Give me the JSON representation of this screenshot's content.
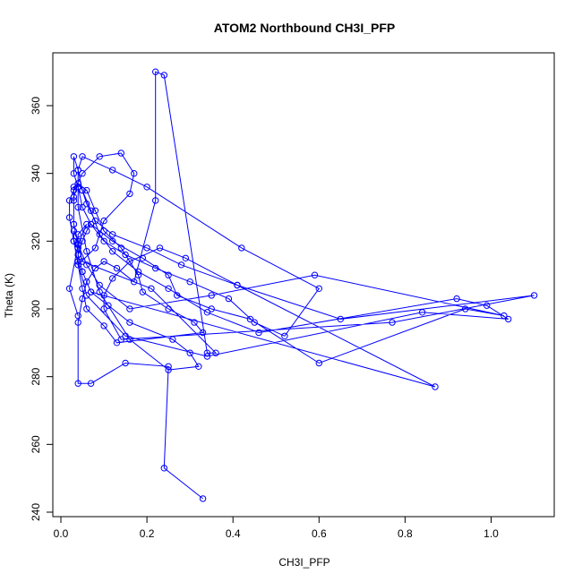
{
  "chart_data": {
    "type": "line",
    "title": "ATOM2 Northbound CH3I_PFP",
    "xlabel": "CH3I_PFP",
    "ylabel": "Theta (K)",
    "xlim": [
      0.0,
      1.1
    ],
    "ylim": [
      240,
      372
    ],
    "x_ticks": [
      0.0,
      0.2,
      0.4,
      0.6,
      0.8,
      1.0
    ],
    "x_tick_labels": [
      "0.0",
      "0.2",
      "0.4",
      "0.6",
      "0.8",
      "1.0"
    ],
    "y_ticks": [
      240,
      260,
      280,
      300,
      320,
      340,
      360
    ],
    "y_tick_labels": [
      "240",
      "260",
      "280",
      "300",
      "320",
      "340",
      "360"
    ],
    "grid": false,
    "colors": {
      "series": "#0000ff",
      "axes": "#000000",
      "background": "#ffffff"
    },
    "series": [
      {
        "marker": "open-circle",
        "x": [
          0.33,
          0.24,
          0.25,
          0.15,
          0.07,
          0.04,
          0.04,
          0.05,
          0.06,
          0.08,
          0.1,
          0.13,
          0.17,
          0.22,
          0.22,
          0.24,
          0.34,
          0.36,
          0.21,
          0.05,
          0.03,
          0.03,
          0.04,
          0.06,
          0.08,
          0.1,
          0.14,
          0.18,
          0.19,
          0.25,
          0.31,
          0.33,
          0.13,
          0.1,
          0.06,
          0.05,
          0.04,
          0.03,
          0.02,
          0.02,
          0.03,
          0.05,
          0.09,
          0.14,
          0.17,
          0.16,
          0.1,
          0.08,
          0.04,
          0.04,
          0.05,
          0.06,
          0.07,
          0.1,
          0.15,
          0.22,
          0.3,
          0.39,
          0.45,
          0.52,
          0.6,
          0.42,
          0.2,
          0.12,
          0.05,
          0.04,
          0.04,
          0.05,
          0.07,
          0.12,
          0.19,
          0.25,
          0.27,
          0.35,
          0.44,
          0.6,
          0.94,
          1.03,
          0.59,
          0.35,
          0.16,
          0.09,
          0.06,
          0.04,
          0.03,
          0.03,
          0.03,
          0.04,
          0.05,
          0.06,
          0.08,
          0.12,
          0.2,
          0.28,
          0.41,
          0.65,
          1.1,
          0.77,
          0.14,
          0.1,
          0.1,
          0.12,
          0.16,
          0.23,
          0.29,
          0.41,
          0.87,
          0.07,
          0.05,
          0.04,
          0.04,
          0.03,
          0.03,
          0.04,
          0.04,
          0.05,
          0.07,
          0.11,
          0.16,
          0.26,
          0.3,
          0.32,
          0.25,
          0.16,
          0.09,
          0.06,
          0.04,
          0.04,
          0.03,
          0.03,
          0.04,
          0.05,
          0.07,
          0.09,
          0.12,
          0.18,
          0.25,
          0.34,
          0.46,
          0.92,
          0.99,
          1.04,
          0.84,
          0.34,
          0.15,
          0.06,
          0.04,
          0.04,
          0.06,
          0.04,
          0.02,
          0.04
        ],
        "y": [
          244,
          253,
          283,
          284,
          278,
          278,
          296,
          303,
          308,
          312,
          314,
          312,
          308,
          332,
          370,
          369,
          287,
          287,
          306,
          314,
          325,
          333,
          337,
          335,
          329,
          323,
          318,
          310,
          305,
          300,
          296,
          293,
          290,
          295,
          300,
          306,
          313,
          320,
          327,
          332,
          335,
          340,
          345,
          346,
          340,
          334,
          326,
          318,
          313,
          316,
          320,
          323,
          325,
          320,
          316,
          312,
          308,
          303,
          296,
          292,
          306,
          318,
          336,
          341,
          345,
          341,
          336,
          330,
          325,
          320,
          315,
          310,
          304,
          300,
          297,
          284,
          300,
          298,
          310,
          304,
          300,
          307,
          313,
          319,
          325,
          332,
          336,
          337,
          335,
          331,
          326,
          322,
          318,
          313,
          307,
          297,
          304,
          296,
          291,
          300,
          304,
          309,
          314,
          318,
          315,
          307,
          277,
          305,
          311,
          316,
          318,
          320,
          323,
          320,
          316,
          311,
          305,
          301,
          296,
          291,
          287,
          283,
          282,
          291,
          305,
          317,
          330,
          336,
          340,
          345,
          341,
          335,
          329,
          322,
          317,
          311,
          306,
          299,
          293,
          303,
          301,
          297,
          299,
          286,
          292,
          304,
          314,
          322,
          325,
          319,
          306,
          298
        ]
      }
    ]
  }
}
